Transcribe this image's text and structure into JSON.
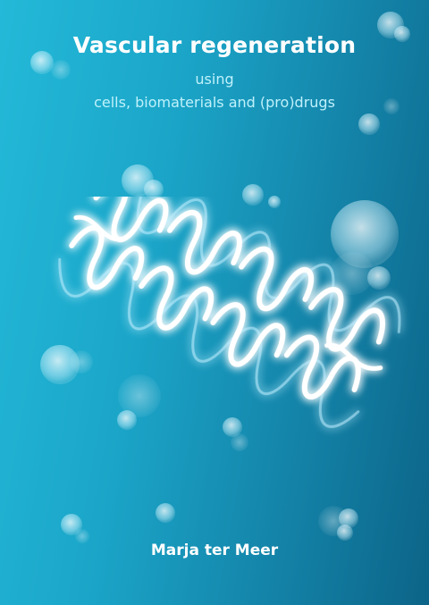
{
  "cover": {
    "title": "Vascular regeneration",
    "subtitle_line1": "using",
    "subtitle_line2": "cells, biomaterials and (pro)drugs",
    "author": "Marja ter Meer"
  },
  "colors": {
    "gradient_light": "#24b9d8",
    "gradient_dark": "#0c6488",
    "title": "#ffffff",
    "subtitle": "#bff1fb",
    "stent_glow": "#dff9ff"
  },
  "illustration": {
    "icon": "glowing-stent-illustration"
  }
}
